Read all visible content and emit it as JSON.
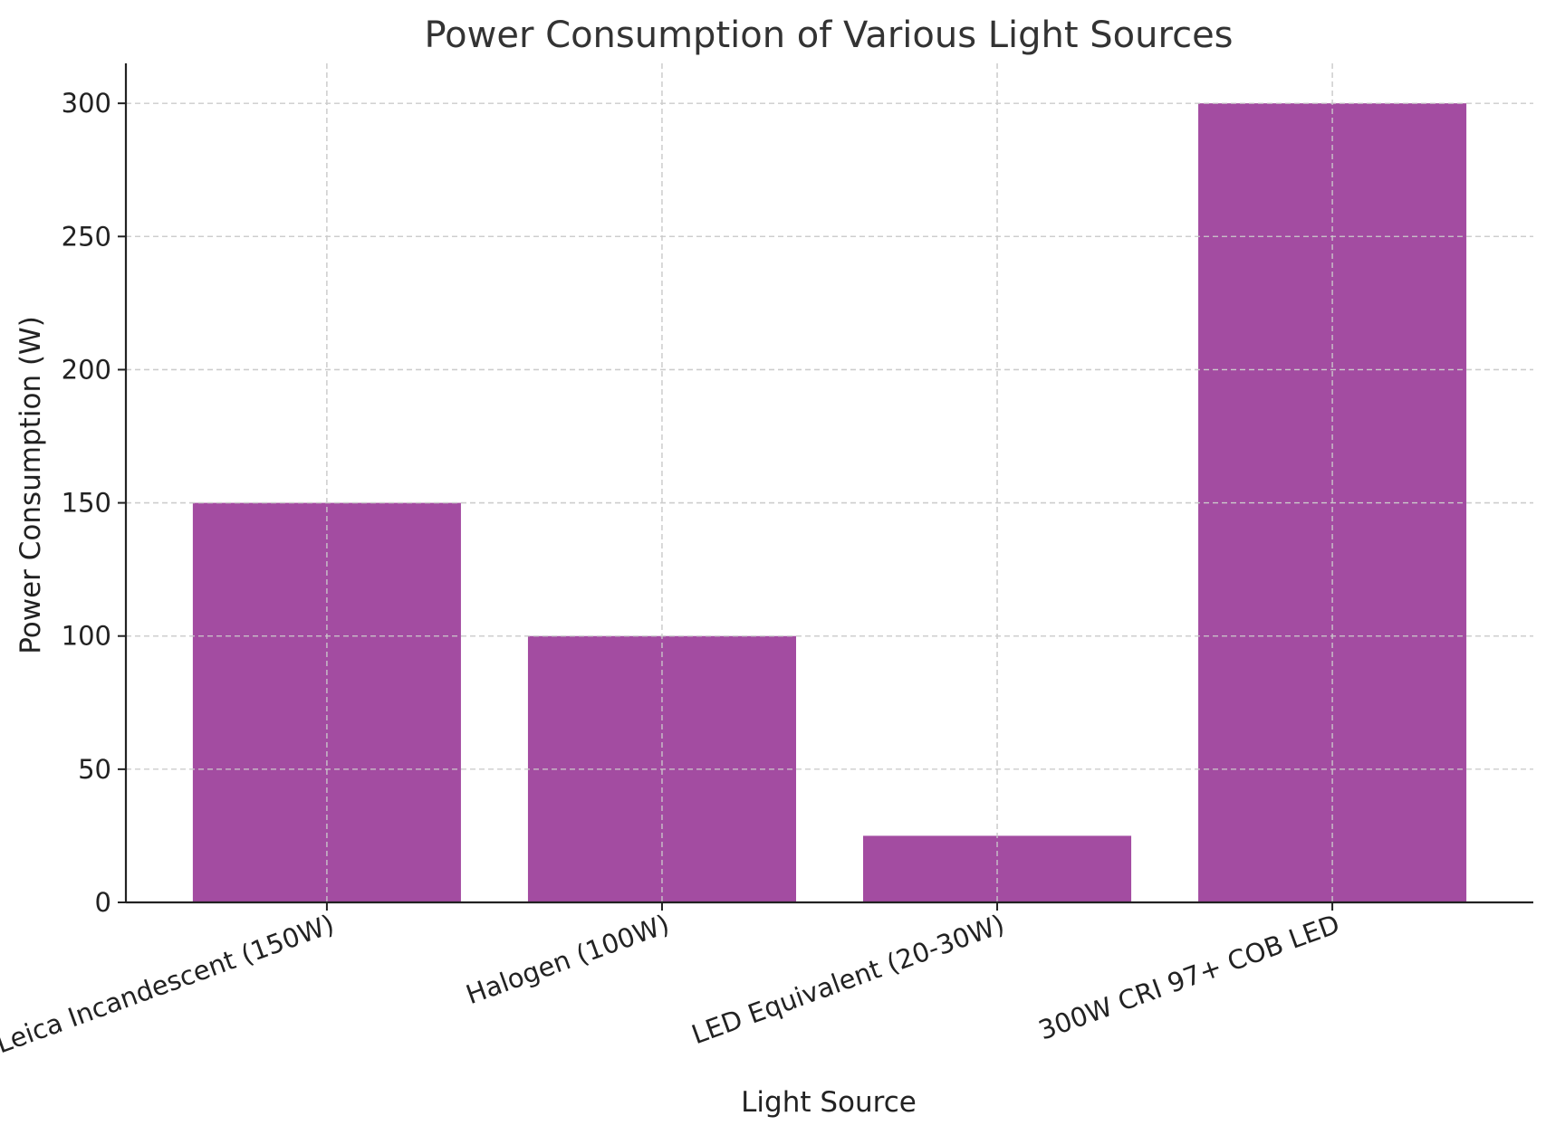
{
  "chart_data": {
    "type": "bar",
    "title": "Power Consumption of Various Light Sources",
    "xlabel": "Light Source",
    "ylabel": "Power Consumption (W)",
    "categories": [
      "Leica Incandescent (150W)",
      "Halogen (100W)",
      "LED Equivalent (20-30W)",
      "300W CRI 97+ COB LED"
    ],
    "values": [
      150,
      100,
      25,
      300
    ],
    "ylim": [
      0,
      315
    ],
    "yticks": [
      0,
      50,
      100,
      150,
      200,
      250,
      300
    ],
    "grid": true,
    "bar_color": "#a34ca1",
    "x_tick_rotation": "20 degrees counter-clockwise"
  }
}
